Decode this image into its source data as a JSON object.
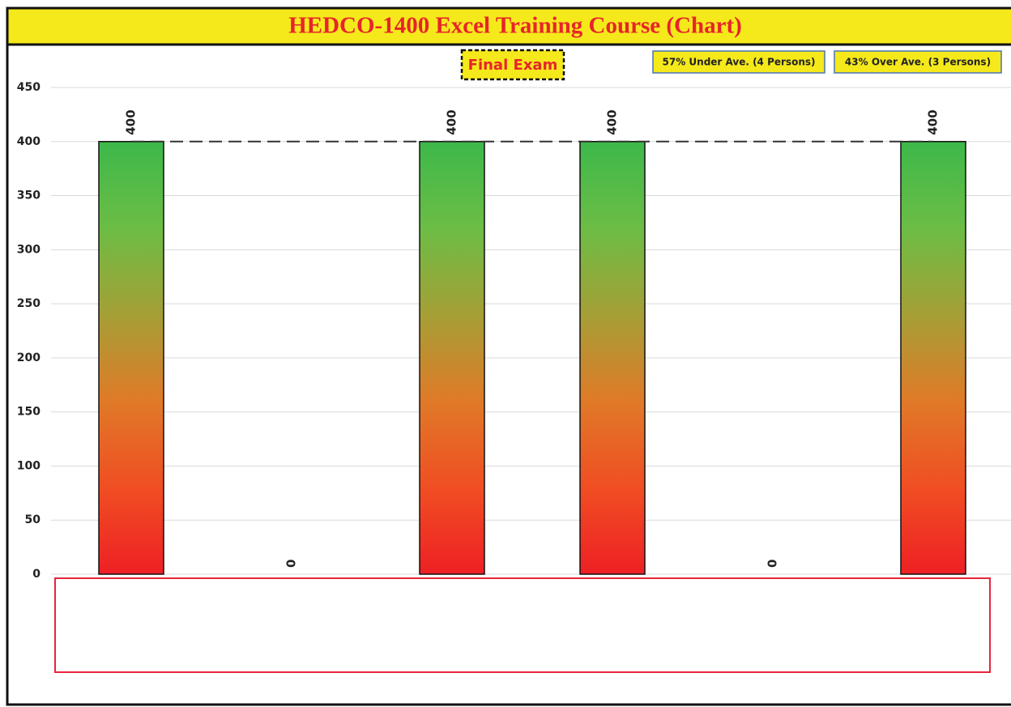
{
  "chart_data": {
    "type": "bar",
    "title": "HEDCO-1400 Excel Training Course (Chart)",
    "subtitle": "Final Exam",
    "annotations": [
      "57% Under Ave. (4 Persons)",
      "43% Over Ave. (3 Persons)"
    ],
    "categories": [
      null,
      null,
      null,
      null,
      null,
      null
    ],
    "values": [
      400,
      0,
      400,
      400,
      0,
      400
    ],
    "average": 400,
    "colors": [
      "#3cb84a",
      "#6cbd45",
      "#a59f36",
      "#e07a28",
      "#f04e23",
      "#ee2024"
    ],
    "ylim": [
      0,
      450
    ],
    "yticks": [
      0,
      50,
      100,
      150,
      200,
      250,
      300,
      350,
      400,
      450
    ],
    "grid": true
  }
}
